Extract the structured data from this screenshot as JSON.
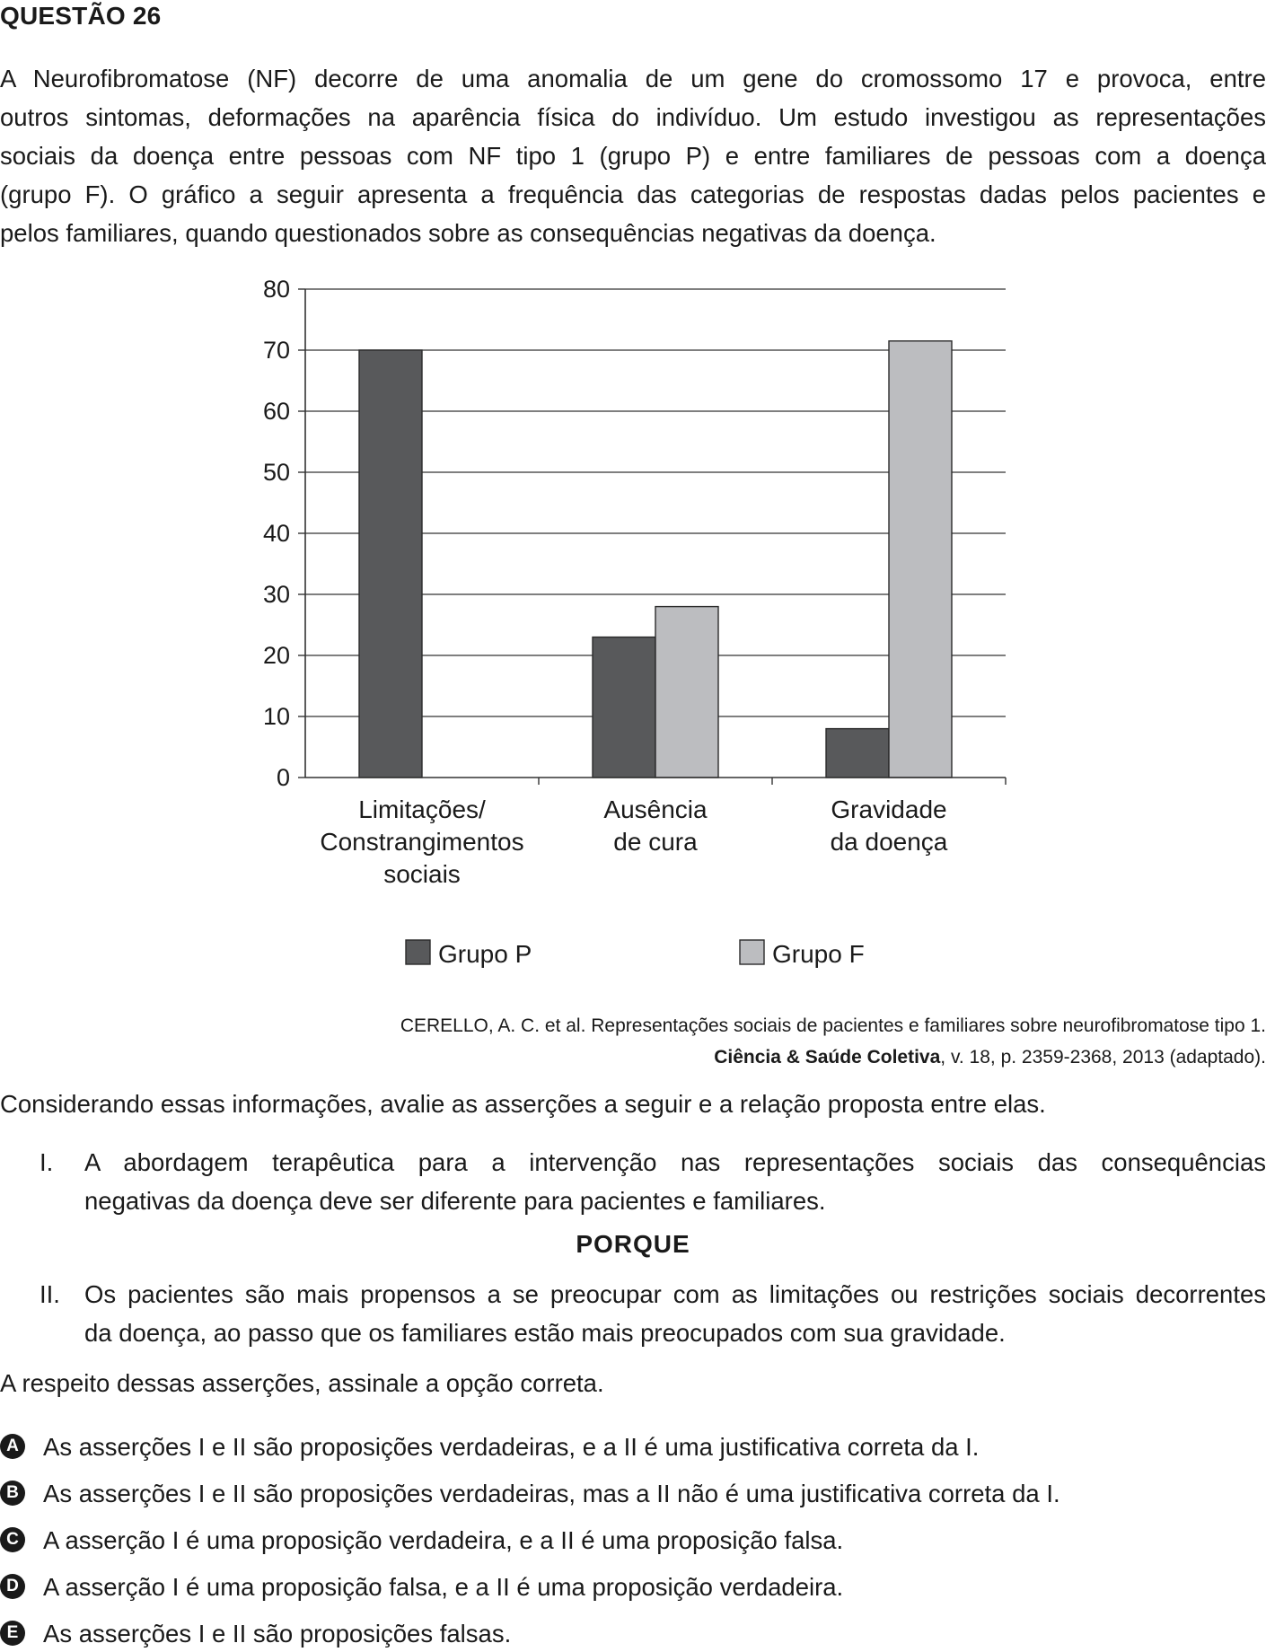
{
  "question": {
    "title": "QUESTÃO 26",
    "intro_lines": [
      "A Neurofibromatose (NF) decorre de uma anomalia de um gene do cromossomo 17 e provoca, entre",
      "outros sintomas, deformações na aparência física do indivíduo. Um estudo investigou as representações",
      "sociais da doença entre pessoas com NF tipo 1 (grupo P) e entre familiares de pessoas com a doença",
      "(grupo F). O gráfico a seguir apresenta a frequência das categorias de respostas dadas pelos pacientes e",
      "pelos familiares, quando questionados sobre as consequências negativas da doença."
    ]
  },
  "chart_data": {
    "type": "bar",
    "title": "",
    "xlabel": "",
    "ylabel": "",
    "ylim": [
      0,
      80
    ],
    "yticks": [
      "0",
      "10",
      "20",
      "30",
      "40",
      "50",
      "60",
      "70",
      "80"
    ],
    "grid": true,
    "legend_position": "bottom",
    "categories": [
      [
        "Limitações/",
        "Constrangimentos",
        "sociais"
      ],
      [
        "Ausência",
        "de cura"
      ],
      [
        "Gravidade",
        "da doença"
      ]
    ],
    "series": [
      {
        "name": "Grupo P",
        "color": "#58595b",
        "values": [
          70,
          23,
          8
        ]
      },
      {
        "name": "Grupo F",
        "color": "#bcbdc0",
        "values": [
          0,
          28,
          71.5
        ]
      }
    ]
  },
  "source": {
    "line1": "CERELLO, A. C. et al. Representações sociais de pacientes e familiares sobre neurofibromatose tipo 1.",
    "journal": "Ciência & Saúde Coletiva",
    "line2_rest": ", v. 18, p. 2359-2368, 2013 (adaptado)."
  },
  "considerando": "Considerando essas informações, avalie as asserções a seguir e a relação proposta entre elas.",
  "assertion_1": {
    "num": "I.",
    "lines": [
      "A abordagem terapêutica para a intervenção nas representações sociais das consequências",
      "negativas da doença deve ser diferente para pacientes e familiares."
    ]
  },
  "porque": "PORQUE",
  "assertion_2": {
    "num": "II.",
    "lines": [
      "Os pacientes são mais propensos a se preocupar com as limitações ou restrições sociais decorrentes",
      "da doença, ao passo que os familiares estão mais preocupados com sua gravidade."
    ]
  },
  "prompt": "A respeito dessas asserções, assinale a opção correta.",
  "options": [
    {
      "letter": "A",
      "text": "As asserções I e II são proposições verdadeiras, e a II é uma justificativa correta da I."
    },
    {
      "letter": "B",
      "text": "As asserções I e II são proposições verdadeiras, mas a II não é uma justificativa correta da I."
    },
    {
      "letter": "C",
      "text": "A asserção I é uma proposição verdadeira, e a II é uma proposição falsa."
    },
    {
      "letter": "D",
      "text": "A asserção I é uma proposição falsa, e a II é uma proposição verdadeira."
    },
    {
      "letter": "E",
      "text": "As asserções I e II são proposições falsas."
    }
  ]
}
